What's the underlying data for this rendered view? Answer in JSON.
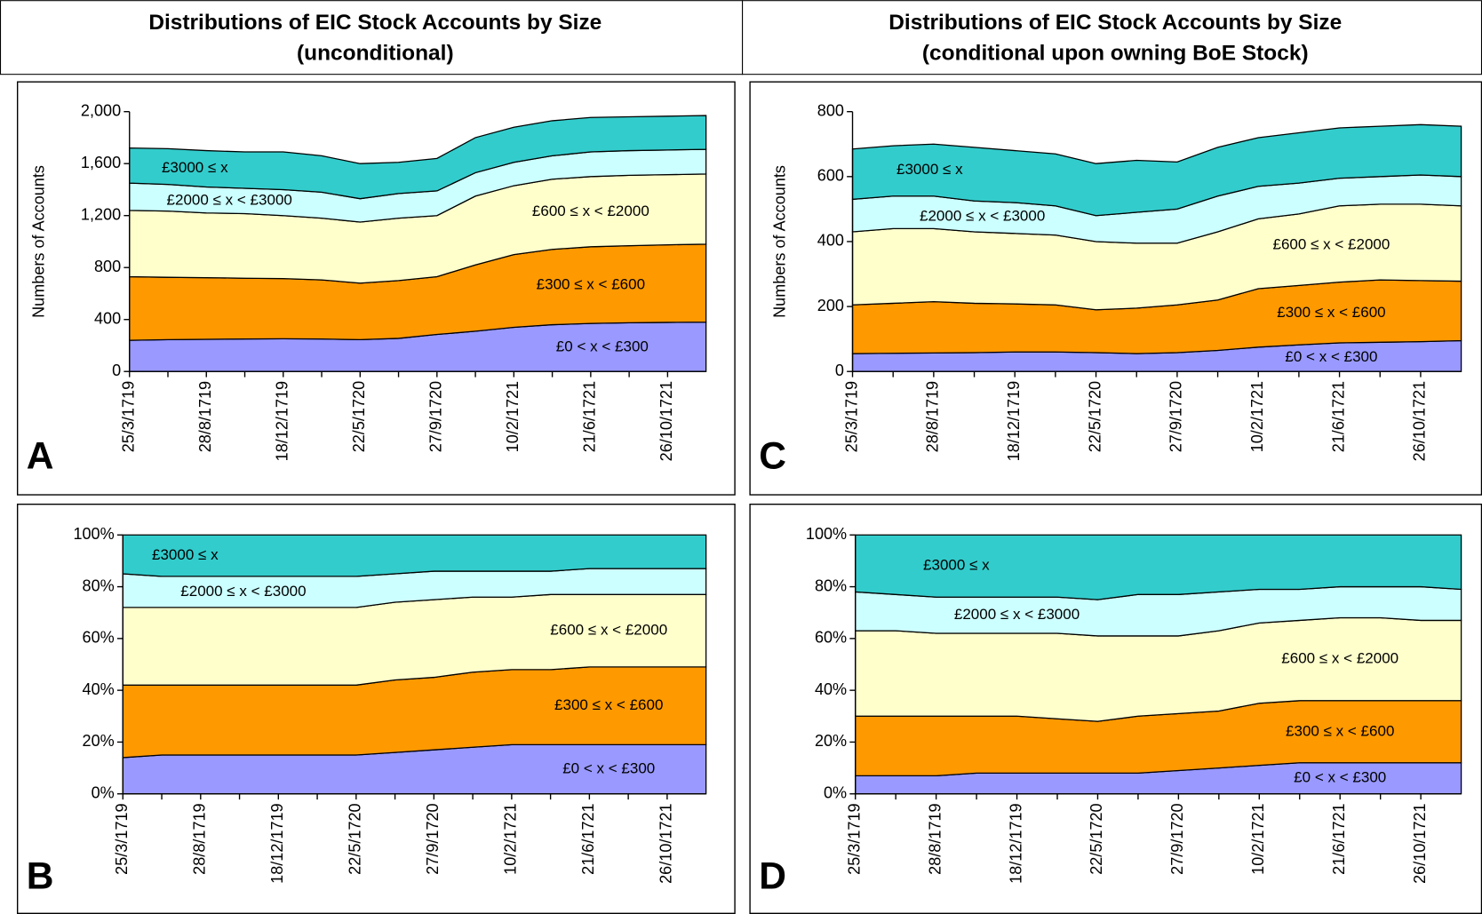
{
  "headers": [
    {
      "lines": [
        "Distributions of EIC Stock Accounts by Size",
        "(unconditional)"
      ]
    },
    {
      "lines": [
        "Distributions of EIC Stock Accounts by Size",
        "(conditional upon owning BoE Stock)"
      ]
    }
  ],
  "chart_data": [
    {
      "type": "stacked_area",
      "panel": "A",
      "y_label": "Numbers of Accounts",
      "categories": [
        "25/3/1719",
        null,
        "28/8/1719",
        null,
        "18/12/1719",
        null,
        "22/5/1720",
        null,
        "27/9/1720",
        null,
        "10/2/1721",
        null,
        "21/6/1721",
        null,
        "26/10/1721",
        null
      ],
      "ylim": [
        0,
        2000
      ],
      "yticks": [
        0,
        400,
        800,
        {
          "value": 1200,
          "label": "1,200"
        },
        {
          "value": 1600,
          "label": "1,600"
        },
        {
          "value": 2000,
          "label": "2,000"
        }
      ],
      "series": [
        {
          "name": "£0 < x < £300",
          "color": "#9999ff",
          "values": [
            240,
            245,
            248,
            250,
            252,
            250,
            245,
            255,
            285,
            310,
            340,
            360,
            370,
            375,
            378,
            380
          ]
        },
        {
          "name": "£300 ≤ x < £600",
          "color": "#ff9900",
          "values": [
            490,
            480,
            474,
            468,
            463,
            455,
            435,
            445,
            445,
            510,
            560,
            580,
            590,
            593,
            597,
            600
          ]
        },
        {
          "name": "£600 ≤ x < £2000",
          "color": "#ffffcc",
          "values": [
            510,
            510,
            498,
            497,
            485,
            475,
            470,
            480,
            470,
            530,
            530,
            540,
            540,
            542,
            540,
            540
          ]
        },
        {
          "name": "£2000 ≤ x < £3000",
          "color": "#ccffff",
          "values": [
            210,
            205,
            200,
            195,
            200,
            200,
            180,
            190,
            190,
            180,
            180,
            180,
            190,
            190,
            190,
            190
          ]
        },
        {
          "name": "£3000 ≤ x",
          "color": "#33cccc",
          "values": [
            270,
            275,
            280,
            280,
            290,
            280,
            270,
            240,
            250,
            270,
            270,
            270,
            265,
            260,
            260,
            260
          ]
        }
      ]
    },
    {
      "type": "stacked_area",
      "panel": "B",
      "categories": [
        "25/3/1719",
        null,
        "28/8/1719",
        null,
        "18/12/1719",
        null,
        "22/5/1720",
        null,
        "27/9/1720",
        null,
        "10/2/1721",
        null,
        "21/6/1721",
        null,
        "26/10/1721",
        null
      ],
      "ylim": [
        0,
        100
      ],
      "yticks": [
        {
          "value": 0,
          "label": "0%"
        },
        {
          "value": 20,
          "label": "20%"
        },
        {
          "value": 40,
          "label": "40%"
        },
        {
          "value": 60,
          "label": "60%"
        },
        {
          "value": 80,
          "label": "80%"
        },
        {
          "value": 100,
          "label": "100%"
        }
      ],
      "series": [
        {
          "name": "£0 < x < £300",
          "color": "#9999ff",
          "values": [
            14,
            15,
            15,
            15,
            15,
            15,
            15,
            16,
            17,
            18,
            19,
            19,
            19,
            19,
            19,
            19
          ]
        },
        {
          "name": "£300 ≤ x < £600",
          "color": "#ff9900",
          "values": [
            28,
            27,
            27,
            27,
            27,
            27,
            27,
            28,
            28,
            29,
            29,
            29,
            30,
            30,
            30,
            30
          ]
        },
        {
          "name": "£600 ≤ x < £2000",
          "color": "#ffffcc",
          "values": [
            30,
            30,
            30,
            30,
            30,
            30,
            30,
            30,
            30,
            29,
            28,
            29,
            28,
            28,
            28,
            28
          ]
        },
        {
          "name": "£2000 ≤ x < £3000",
          "color": "#ccffff",
          "values": [
            13,
            12,
            12,
            12,
            12,
            12,
            12,
            11,
            11,
            10,
            10,
            9,
            10,
            10,
            10,
            10
          ]
        },
        {
          "name": "£3000 ≤ x",
          "color": "#33cccc",
          "values": [
            15,
            16,
            16,
            16,
            16,
            16,
            16,
            15,
            14,
            14,
            14,
            14,
            13,
            13,
            13,
            13
          ]
        }
      ]
    },
    {
      "type": "stacked_area",
      "panel": "C",
      "y_label": "Numbers of Accounts",
      "categories": [
        "25/3/1719",
        null,
        "28/8/1719",
        null,
        "18/12/1719",
        null,
        "22/5/1720",
        null,
        "27/9/1720",
        null,
        "10/2/1721",
        null,
        "21/6/1721",
        null,
        "26/10/1721",
        null
      ],
      "ylim": [
        0,
        800
      ],
      "yticks": [
        0,
        200,
        400,
        600,
        800
      ],
      "series": [
        {
          "name": "£0 < x < £300",
          "color": "#9999ff",
          "values": [
            55,
            56,
            57,
            58,
            60,
            60,
            58,
            55,
            58,
            65,
            75,
            82,
            88,
            90,
            92,
            95
          ]
        },
        {
          "name": "£300 ≤ x < £600",
          "color": "#ff9900",
          "values": [
            150,
            154,
            158,
            152,
            148,
            145,
            132,
            140,
            147,
            155,
            180,
            183,
            187,
            192,
            188,
            183
          ]
        },
        {
          "name": "£600 ≤ x < £2000",
          "color": "#ffffcc",
          "values": [
            225,
            230,
            225,
            220,
            217,
            215,
            210,
            200,
            190,
            210,
            215,
            220,
            235,
            233,
            235,
            232
          ]
        },
        {
          "name": "£2000 ≤ x < £3000",
          "color": "#ccffff",
          "values": [
            100,
            100,
            100,
            95,
            95,
            90,
            80,
            95,
            105,
            110,
            100,
            95,
            85,
            85,
            90,
            90
          ]
        },
        {
          "name": "£3000 ≤ x",
          "color": "#33cccc",
          "values": [
            155,
            155,
            160,
            165,
            160,
            160,
            160,
            160,
            145,
            150,
            150,
            155,
            155,
            155,
            155,
            155
          ]
        }
      ]
    },
    {
      "type": "stacked_area",
      "panel": "D",
      "categories": [
        "25/3/1719",
        null,
        "28/8/1719",
        null,
        "18/12/1719",
        null,
        "22/5/1720",
        null,
        "27/9/1720",
        null,
        "10/2/1721",
        null,
        "21/6/1721",
        null,
        "26/10/1721",
        null
      ],
      "ylim": [
        0,
        100
      ],
      "yticks": [
        {
          "value": 0,
          "label": "0%"
        },
        {
          "value": 20,
          "label": "20%"
        },
        {
          "value": 40,
          "label": "40%"
        },
        {
          "value": 60,
          "label": "60%"
        },
        {
          "value": 80,
          "label": "80%"
        },
        {
          "value": 100,
          "label": "100%"
        }
      ],
      "series": [
        {
          "name": "£0 < x < £300",
          "color": "#9999ff",
          "values": [
            7,
            7,
            7,
            8,
            8,
            8,
            8,
            8,
            9,
            10,
            11,
            12,
            12,
            12,
            12,
            12
          ]
        },
        {
          "name": "£300 ≤ x < £600",
          "color": "#ff9900",
          "values": [
            23,
            23,
            23,
            22,
            22,
            21,
            20,
            22,
            22,
            22,
            24,
            24,
            24,
            24,
            24,
            24
          ]
        },
        {
          "name": "£600 ≤ x < £2000",
          "color": "#ffffcc",
          "values": [
            33,
            33,
            32,
            32,
            32,
            33,
            33,
            31,
            30,
            31,
            31,
            31,
            32,
            32,
            31,
            31
          ]
        },
        {
          "name": "£2000 ≤ x < £3000",
          "color": "#ccffff",
          "values": [
            15,
            14,
            14,
            14,
            14,
            14,
            14,
            16,
            16,
            15,
            13,
            12,
            12,
            12,
            13,
            12
          ]
        },
        {
          "name": "£3000 ≤ x",
          "color": "#33cccc",
          "values": [
            22,
            23,
            24,
            24,
            24,
            24,
            25,
            23,
            23,
            22,
            21,
            21,
            20,
            20,
            20,
            21
          ]
        }
      ]
    }
  ]
}
